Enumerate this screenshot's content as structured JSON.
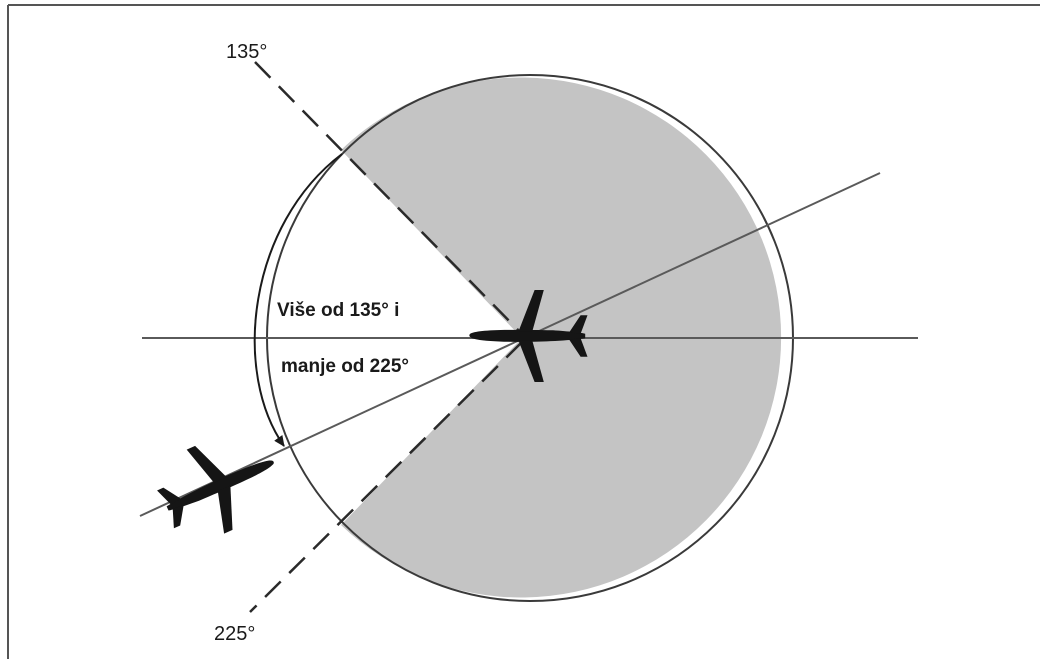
{
  "labels": {
    "angle_top": "135°",
    "angle_bottom": "225°",
    "sector_line1": "Više od 135° i",
    "sector_line2": "manje od 225°"
  },
  "colors": {
    "shaded_sector": "#c4c4c4",
    "lines": "#5a5a5a",
    "aircraft": "#151515",
    "frame": "#555555"
  },
  "icons": {
    "lead_aircraft": "airplane-icon",
    "trailing_aircraft": "airplane-icon"
  }
}
